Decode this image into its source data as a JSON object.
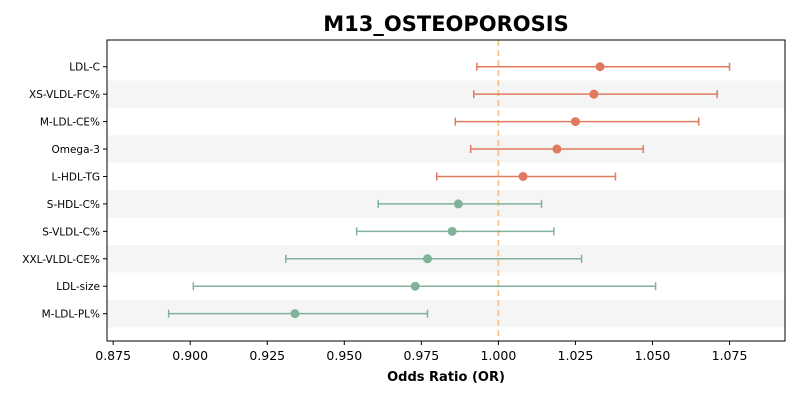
{
  "chart_data": {
    "type": "forest",
    "title": "M13_OSTEOPOROSIS",
    "xlabel": "Odds Ratio (OR)",
    "xlim": [
      0.873,
      1.093
    ],
    "xticks": [
      "0.875",
      "0.900",
      "0.925",
      "0.950",
      "0.975",
      "1.000",
      "1.025",
      "1.050",
      "1.075"
    ],
    "reference_line": 1.0,
    "reference_color": "#f5c07a",
    "colors": {
      "positive": "#e07a5f",
      "negative": "#81b29a",
      "band": "#f5f5f5"
    },
    "rows": [
      {
        "label": "LDL-C",
        "or": 1.033,
        "lo": 0.993,
        "hi": 1.075
      },
      {
        "label": "XS-VLDL-FC%",
        "or": 1.031,
        "lo": 0.992,
        "hi": 1.071
      },
      {
        "label": "M-LDL-CE%",
        "or": 1.025,
        "lo": 0.986,
        "hi": 1.065
      },
      {
        "label": "Omega-3",
        "or": 1.019,
        "lo": 0.991,
        "hi": 1.047
      },
      {
        "label": "L-HDL-TG",
        "or": 1.008,
        "lo": 0.98,
        "hi": 1.038
      },
      {
        "label": "S-HDL-C%",
        "or": 0.987,
        "lo": 0.961,
        "hi": 1.014
      },
      {
        "label": "S-VLDL-C%",
        "or": 0.985,
        "lo": 0.954,
        "hi": 1.018
      },
      {
        "label": "XXL-VLDL-CE%",
        "or": 0.977,
        "lo": 0.931,
        "hi": 1.027
      },
      {
        "label": "LDL-size",
        "or": 0.973,
        "lo": 0.901,
        "hi": 1.051
      },
      {
        "label": "M-LDL-PL%",
        "or": 0.934,
        "lo": 0.893,
        "hi": 0.977
      }
    ]
  }
}
